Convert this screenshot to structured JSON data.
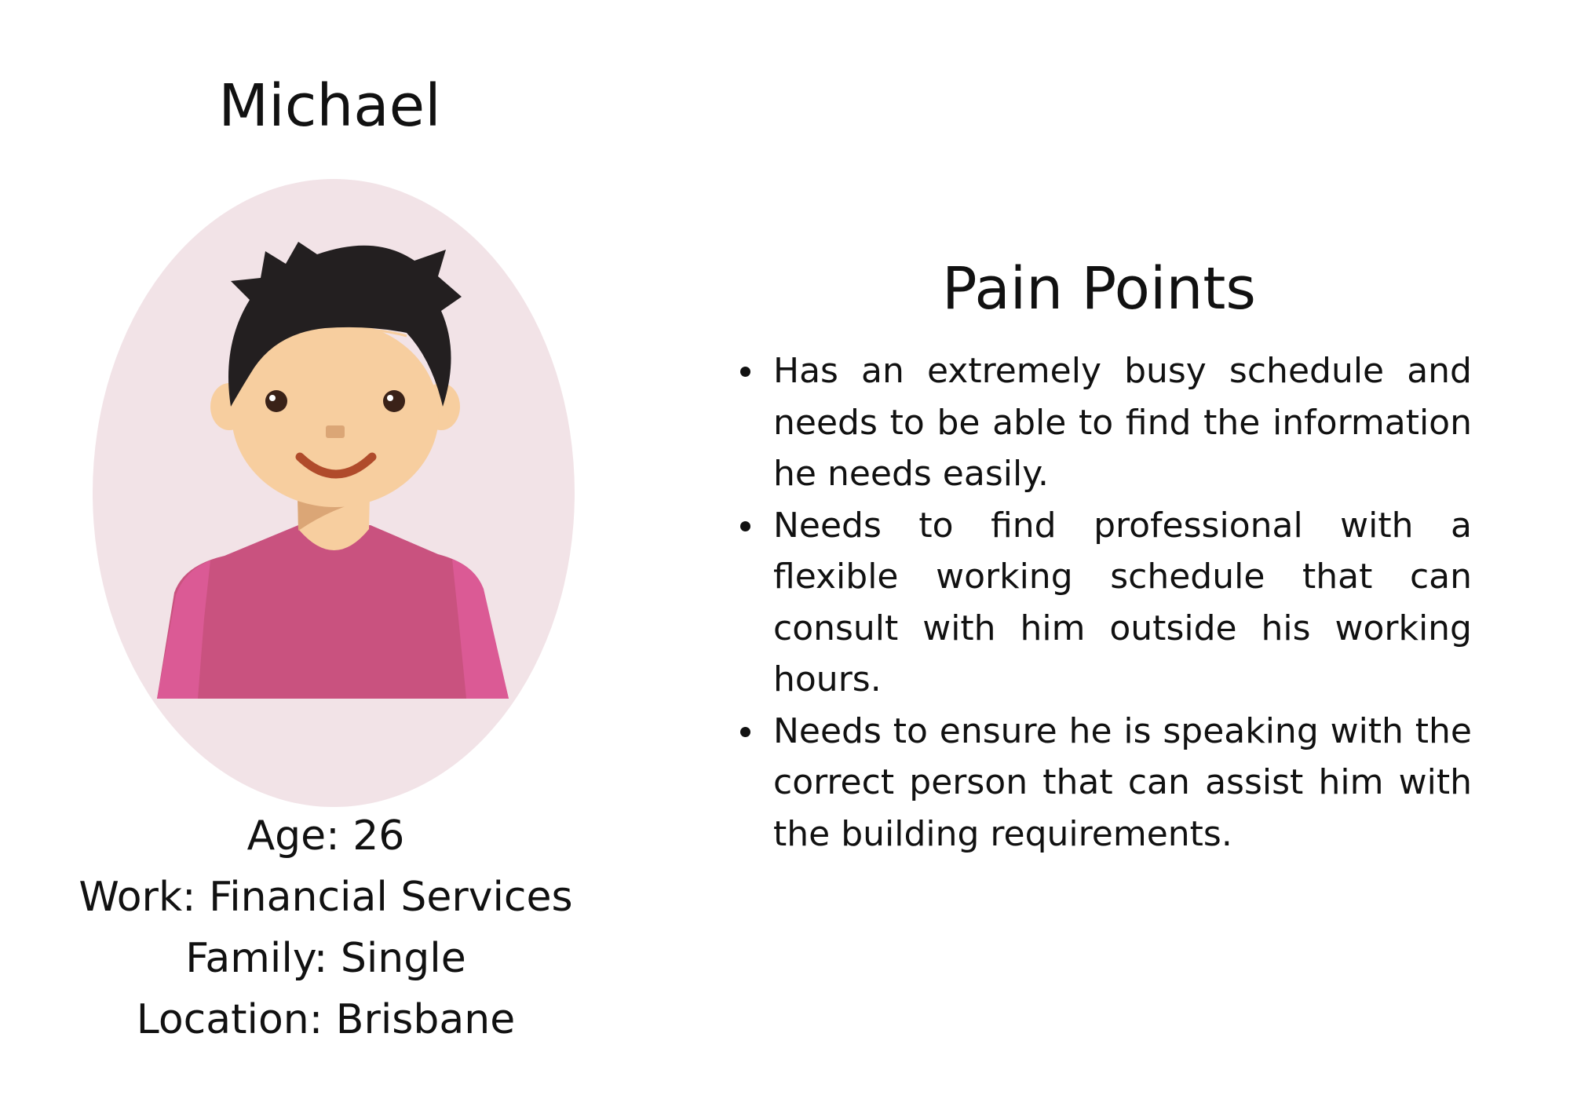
{
  "persona": {
    "name": "Michael",
    "details": [
      {
        "text": "Age: 26"
      },
      {
        "text": "Work: Financial Services"
      },
      {
        "text": "Family: Single"
      },
      {
        "text": "Location: Brisbane"
      }
    ]
  },
  "pain_points": {
    "title": "Pain Points",
    "items": [
      {
        "text": "Has an extremely busy schedule and needs to be able to find the information he needs easily."
      },
      {
        "text": "Needs to find professional with a flexible working schedule that can consult with him outside his working hours."
      },
      {
        "text": "Needs to ensure he is speaking with the correct person that can assist him with the building requirements."
      }
    ]
  },
  "colors": {
    "oval_background": "#f2e3e7",
    "hair": "#231f20",
    "skin": "#f7ce9f",
    "neck_shadow": "#dba676",
    "shirt": "#c9527f",
    "sleeves": "#db5a95",
    "mouth": "#b04b2b"
  },
  "icons": {
    "avatar": "male-avatar-illustration"
  }
}
